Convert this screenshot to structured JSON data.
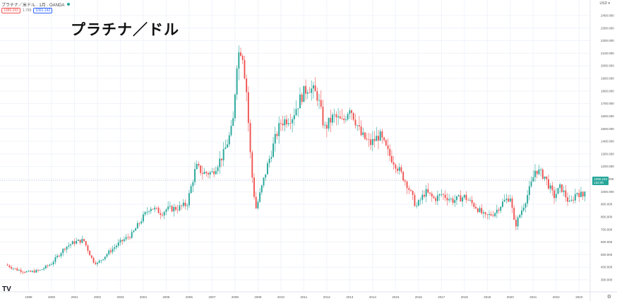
{
  "header": {
    "symbol_line": "プラチナ／米ドル · 1月 · OANDA",
    "bid": "1089.343",
    "spread": "1.799",
    "ask": "1091.142",
    "currency": "USD ▾"
  },
  "overlay_title": "プラチナ／ドル",
  "last_price": {
    "value": "1090.243",
    "countdown": "12d 9h"
  },
  "logo": "TV",
  "settings_icon": "gear-icon",
  "colors": {
    "up": "#26a69a",
    "down": "#ef5350",
    "grid": "#f0f3fa",
    "crosshair": "#9598a1"
  },
  "chart_data": {
    "type": "candlestick",
    "title": "プラチナ／ドル",
    "ylim": [
      240,
      2440
    ],
    "y_ticks": [
      "2400.000",
      "2300.000",
      "2200.000",
      "2100.000",
      "2000.000",
      "1900.000",
      "1800.000",
      "1700.000",
      "1600.000",
      "1500.000",
      "1400.000",
      "1300.000",
      "1200.000",
      "1100.000",
      "1000.000",
      "900.000",
      "800.000",
      "700.000",
      "600.000",
      "500.000",
      "400.000",
      "300.000"
    ],
    "x_ticks": [
      {
        "label": "1999",
        "t": 1999.0
      },
      {
        "label": "2000",
        "t": 2000.0
      },
      {
        "label": "2001",
        "t": 2001.0
      },
      {
        "label": "2002",
        "t": 2002.0
      },
      {
        "label": "2003",
        "t": 2003.0
      },
      {
        "label": "2004",
        "t": 2004.0
      },
      {
        "label": "2005",
        "t": 2005.0
      },
      {
        "label": "2006",
        "t": 2006.0
      },
      {
        "label": "2007",
        "t": 2007.0
      },
      {
        "label": "2008",
        "t": 2008.0
      },
      {
        "label": "2009",
        "t": 2009.0
      },
      {
        "label": "2010",
        "t": 2010.0
      },
      {
        "label": "2011",
        "t": 2011.0
      },
      {
        "label": "2012",
        "t": 2012.0
      },
      {
        "label": "2013",
        "t": 2013.0
      },
      {
        "label": "2014",
        "t": 2014.0
      },
      {
        "label": "2015",
        "t": 2015.0
      },
      {
        "label": "2016",
        "t": 2016.0
      },
      {
        "label": "2017",
        "t": 2017.0
      },
      {
        "label": "2018",
        "t": 2018.0
      },
      {
        "label": "2019",
        "t": 2019.0
      },
      {
        "label": "2020",
        "t": 2020.0
      },
      {
        "label": "2021",
        "t": 2021.0
      },
      {
        "label": "2022",
        "t": 2022.0
      },
      {
        "label": "2023",
        "t": 2023.0
      }
    ],
    "x_range": [
      1998.0,
      2023.5
    ],
    "last_value": 1090.243,
    "close_path": [
      [
        1998.0,
        420
      ],
      [
        1998.5,
        380
      ],
      [
        1999.0,
        360
      ],
      [
        1999.5,
        375
      ],
      [
        2000.0,
        430
      ],
      [
        2000.6,
        560
      ],
      [
        2001.0,
        600
      ],
      [
        2001.4,
        615
      ],
      [
        2001.8,
        450
      ],
      [
        2002.0,
        430
      ],
      [
        2002.5,
        520
      ],
      [
        2003.0,
        600
      ],
      [
        2003.5,
        660
      ],
      [
        2004.0,
        800
      ],
      [
        2004.3,
        880
      ],
      [
        2004.8,
        830
      ],
      [
        2005.0,
        860
      ],
      [
        2005.5,
        870
      ],
      [
        2005.9,
        900
      ],
      [
        2006.3,
        1200
      ],
      [
        2006.6,
        1150
      ],
      [
        2007.0,
        1150
      ],
      [
        2007.5,
        1300
      ],
      [
        2007.9,
        1520
      ],
      [
        2008.1,
        2080
      ],
      [
        2008.3,
        2150
      ],
      [
        2008.5,
        1800
      ],
      [
        2008.7,
        1200
      ],
      [
        2008.9,
        860
      ],
      [
        2009.0,
        920
      ],
      [
        2009.4,
        1200
      ],
      [
        2009.8,
        1450
      ],
      [
        2010.0,
        1550
      ],
      [
        2010.5,
        1600
      ],
      [
        2010.9,
        1760
      ],
      [
        2011.2,
        1840
      ],
      [
        2011.6,
        1760
      ],
      [
        2011.9,
        1500
      ],
      [
        2012.3,
        1600
      ],
      [
        2012.7,
        1550
      ],
      [
        2013.0,
        1680
      ],
      [
        2013.5,
        1450
      ],
      [
        2013.9,
        1380
      ],
      [
        2014.3,
        1450
      ],
      [
        2014.7,
        1300
      ],
      [
        2015.0,
        1220
      ],
      [
        2015.5,
        1060
      ],
      [
        2015.9,
        880
      ],
      [
        2016.3,
        1000
      ],
      [
        2016.7,
        940
      ],
      [
        2017.0,
        980
      ],
      [
        2017.5,
        930
      ],
      [
        2018.0,
        960
      ],
      [
        2018.5,
        880
      ],
      [
        2018.9,
        800
      ],
      [
        2019.3,
        830
      ],
      [
        2019.7,
        920
      ],
      [
        2020.0,
        960
      ],
      [
        2020.2,
        720
      ],
      [
        2020.6,
        900
      ],
      [
        2020.9,
        1050
      ],
      [
        2021.1,
        1180
      ],
      [
        2021.5,
        1120
      ],
      [
        2021.9,
        960
      ],
      [
        2022.2,
        1040
      ],
      [
        2022.6,
        900
      ],
      [
        2022.9,
        1000
      ],
      [
        2023.2,
        960
      ],
      [
        2023.3,
        1090
      ]
    ]
  }
}
